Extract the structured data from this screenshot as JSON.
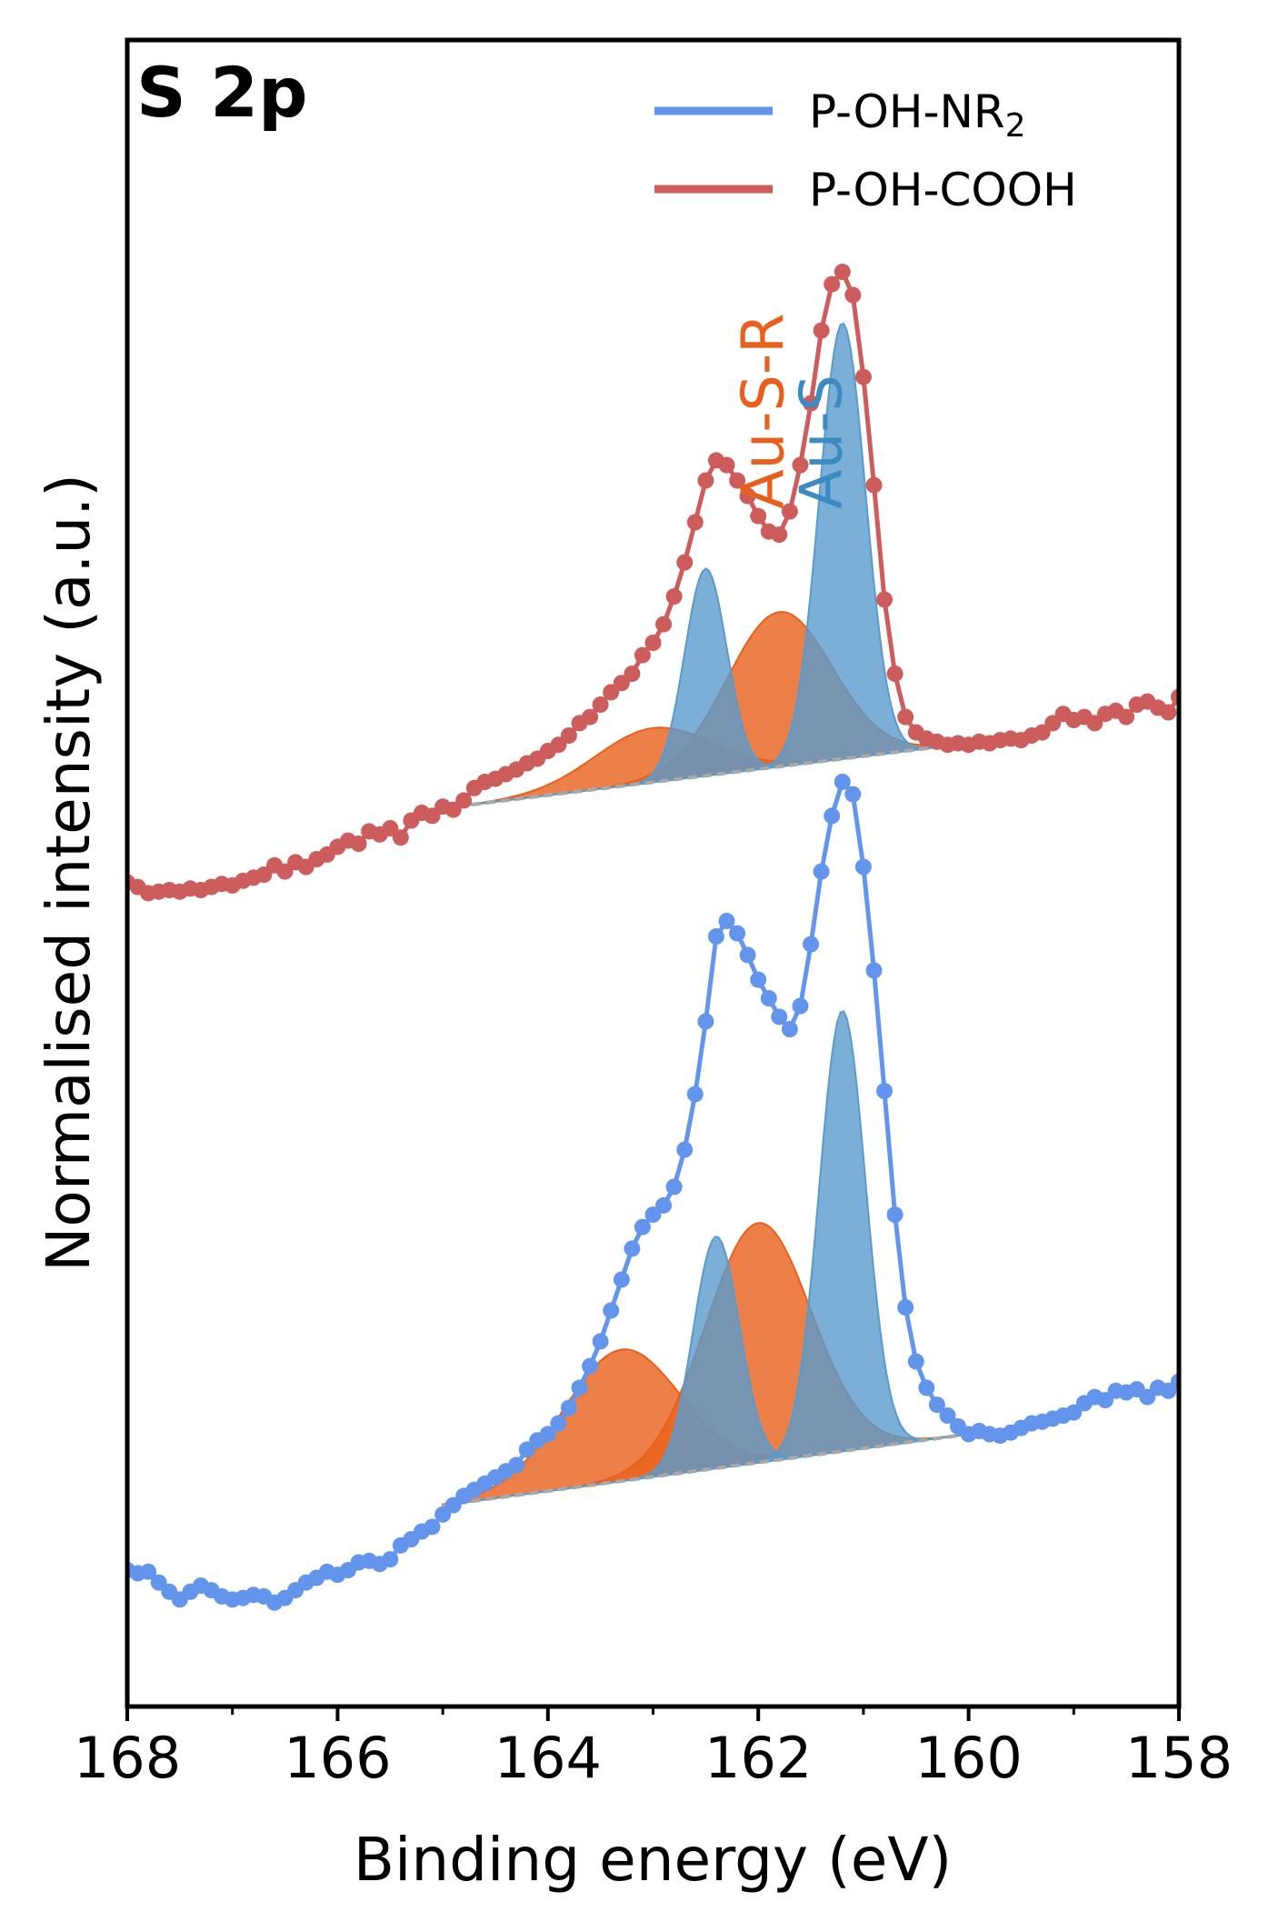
{
  "chart_data": {
    "type": "line",
    "panel_label": "S 2p",
    "xlabel": "Binding energy (eV)",
    "ylabel": "Normalised intensity (a.u.)",
    "xlim": [
      168,
      158
    ],
    "x_axis_reversed": true,
    "x_ticks": [
      168,
      166,
      164,
      162,
      160,
      158
    ],
    "y_ticks_shown": false,
    "grid": false,
    "legend_position": "top-right",
    "peak_labels": [
      {
        "text": "Au-S-R",
        "x": 162.1,
        "color": "#e8601c"
      },
      {
        "text": "Au-S",
        "x": 161.5,
        "color": "#3b8bc2"
      }
    ],
    "series": [
      {
        "name": "P-OH-NR",
        "name_subscript": "2",
        "color": "#6495ed",
        "background_line": [
          [
            165.0,
            0.92
          ],
          [
            160.0,
            1.38
          ]
        ],
        "components": [
          {
            "label": "Au-S",
            "color": "#5a9bcd",
            "peaks": [
              {
                "x0": 161.2,
                "height": 2.85,
                "sigma": 0.22
              },
              {
                "x0": 162.4,
                "height": 1.5,
                "sigma": 0.22
              }
            ]
          },
          {
            "label": "Au-S-R",
            "color": "#e8601c",
            "peaks": [
              {
                "x0": 162.0,
                "height": 1.55,
                "sigma": 0.5
              },
              {
                "x0": 163.3,
                "height": 0.85,
                "sigma": 0.55
              }
            ]
          }
        ],
        "points": [
          [
            168.0,
            0.5
          ],
          [
            167.9,
            0.48
          ],
          [
            167.8,
            0.49
          ],
          [
            167.7,
            0.42
          ],
          [
            167.6,
            0.36
          ],
          [
            167.5,
            0.31
          ],
          [
            167.4,
            0.36
          ],
          [
            167.3,
            0.4
          ],
          [
            167.2,
            0.37
          ],
          [
            167.1,
            0.33
          ],
          [
            167.0,
            0.31
          ],
          [
            166.9,
            0.32
          ],
          [
            166.8,
            0.34
          ],
          [
            166.7,
            0.33
          ],
          [
            166.6,
            0.29
          ],
          [
            166.5,
            0.32
          ],
          [
            166.4,
            0.37
          ],
          [
            166.3,
            0.42
          ],
          [
            166.2,
            0.45
          ],
          [
            166.1,
            0.49
          ],
          [
            166.0,
            0.47
          ],
          [
            165.9,
            0.5
          ],
          [
            165.8,
            0.55
          ],
          [
            165.7,
            0.56
          ],
          [
            165.6,
            0.54
          ],
          [
            165.5,
            0.57
          ],
          [
            165.4,
            0.66
          ],
          [
            165.3,
            0.7
          ],
          [
            165.2,
            0.75
          ],
          [
            165.1,
            0.78
          ],
          [
            165.0,
            0.86
          ],
          [
            164.9,
            0.92
          ],
          [
            164.8,
            0.98
          ],
          [
            164.7,
            1.02
          ],
          [
            164.6,
            1.06
          ],
          [
            164.5,
            1.1
          ],
          [
            164.4,
            1.14
          ],
          [
            164.3,
            1.18
          ],
          [
            164.2,
            1.28
          ],
          [
            164.1,
            1.34
          ],
          [
            164.0,
            1.38
          ],
          [
            163.9,
            1.45
          ],
          [
            163.8,
            1.55
          ],
          [
            163.7,
            1.68
          ],
          [
            163.6,
            1.82
          ],
          [
            163.5,
            1.98
          ],
          [
            163.4,
            2.18
          ],
          [
            163.3,
            2.38
          ],
          [
            163.2,
            2.58
          ],
          [
            163.1,
            2.72
          ],
          [
            163.0,
            2.8
          ],
          [
            162.9,
            2.86
          ],
          [
            162.8,
            2.98
          ],
          [
            162.7,
            3.22
          ],
          [
            162.6,
            3.58
          ],
          [
            162.5,
            4.05
          ],
          [
            162.4,
            4.6
          ],
          [
            162.3,
            4.7
          ],
          [
            162.2,
            4.62
          ],
          [
            162.1,
            4.48
          ],
          [
            162.0,
            4.32
          ],
          [
            161.9,
            4.2
          ],
          [
            161.8,
            4.08
          ],
          [
            161.7,
            4.0
          ],
          [
            161.6,
            4.15
          ],
          [
            161.5,
            4.55
          ],
          [
            161.4,
            5.02
          ],
          [
            161.3,
            5.38
          ],
          [
            161.2,
            5.6
          ],
          [
            161.1,
            5.52
          ],
          [
            161.0,
            5.05
          ],
          [
            160.9,
            4.38
          ],
          [
            160.8,
            3.6
          ],
          [
            160.7,
            2.8
          ],
          [
            160.6,
            2.2
          ],
          [
            160.5,
            1.85
          ],
          [
            160.4,
            1.68
          ],
          [
            160.3,
            1.57
          ],
          [
            160.2,
            1.5
          ],
          [
            160.1,
            1.43
          ],
          [
            160.0,
            1.38
          ],
          [
            159.9,
            1.4
          ],
          [
            159.8,
            1.38
          ],
          [
            159.7,
            1.37
          ],
          [
            159.6,
            1.39
          ],
          [
            159.5,
            1.42
          ],
          [
            159.4,
            1.45
          ],
          [
            159.3,
            1.46
          ],
          [
            159.2,
            1.48
          ],
          [
            159.1,
            1.5
          ],
          [
            159.0,
            1.52
          ],
          [
            158.9,
            1.58
          ],
          [
            158.8,
            1.62
          ],
          [
            158.7,
            1.6
          ],
          [
            158.6,
            1.66
          ],
          [
            158.5,
            1.65
          ],
          [
            158.4,
            1.67
          ],
          [
            158.3,
            1.62
          ],
          [
            158.2,
            1.68
          ],
          [
            158.1,
            1.66
          ],
          [
            158.0,
            1.72
          ]
        ]
      },
      {
        "name": "P-OH-COOH",
        "color": "#cd5c5c",
        "background_line": [
          [
            165.0,
            5.43
          ],
          [
            160.0,
            5.85
          ]
        ],
        "components": [
          {
            "label": "Au-S",
            "color": "#5a9bcd",
            "peaks": [
              {
                "x0": 161.2,
                "height": 2.82,
                "sigma": 0.22
              },
              {
                "x0": 162.5,
                "height": 1.34,
                "sigma": 0.2
              }
            ]
          },
          {
            "label": "Au-S-R",
            "color": "#e8601c",
            "peaks": [
              {
                "x0": 161.8,
                "height": 1.0,
                "sigma": 0.5
              },
              {
                "x0": 163.0,
                "height": 0.35,
                "sigma": 0.55
              }
            ]
          }
        ],
        "points": [
          [
            168.0,
            4.95
          ],
          [
            167.9,
            4.92
          ],
          [
            167.8,
            4.88
          ],
          [
            167.7,
            4.89
          ],
          [
            167.6,
            4.9
          ],
          [
            167.5,
            4.89
          ],
          [
            167.4,
            4.91
          ],
          [
            167.3,
            4.9
          ],
          [
            167.2,
            4.92
          ],
          [
            167.1,
            4.94
          ],
          [
            167.0,
            4.93
          ],
          [
            166.9,
            4.96
          ],
          [
            166.8,
            4.98
          ],
          [
            166.7,
            5.0
          ],
          [
            166.6,
            5.06
          ],
          [
            166.5,
            5.02
          ],
          [
            166.4,
            5.08
          ],
          [
            166.3,
            5.05
          ],
          [
            166.2,
            5.1
          ],
          [
            166.1,
            5.13
          ],
          [
            166.0,
            5.18
          ],
          [
            165.9,
            5.22
          ],
          [
            165.8,
            5.2
          ],
          [
            165.7,
            5.28
          ],
          [
            165.6,
            5.26
          ],
          [
            165.5,
            5.3
          ],
          [
            165.4,
            5.24
          ],
          [
            165.3,
            5.35
          ],
          [
            165.2,
            5.4
          ],
          [
            165.1,
            5.38
          ],
          [
            165.0,
            5.44
          ],
          [
            164.9,
            5.42
          ],
          [
            164.8,
            5.48
          ],
          [
            164.7,
            5.56
          ],
          [
            164.6,
            5.6
          ],
          [
            164.5,
            5.62
          ],
          [
            164.4,
            5.65
          ],
          [
            164.3,
            5.68
          ],
          [
            164.2,
            5.72
          ],
          [
            164.1,
            5.75
          ],
          [
            164.0,
            5.8
          ],
          [
            163.9,
            5.84
          ],
          [
            163.8,
            5.9
          ],
          [
            163.7,
            5.98
          ],
          [
            163.6,
            6.02
          ],
          [
            163.5,
            6.1
          ],
          [
            163.4,
            6.18
          ],
          [
            163.3,
            6.24
          ],
          [
            163.2,
            6.3
          ],
          [
            163.1,
            6.42
          ],
          [
            163.0,
            6.5
          ],
          [
            162.9,
            6.62
          ],
          [
            162.8,
            6.8
          ],
          [
            162.7,
            7.02
          ],
          [
            162.6,
            7.28
          ],
          [
            162.5,
            7.55
          ],
          [
            162.4,
            7.68
          ],
          [
            162.3,
            7.65
          ],
          [
            162.2,
            7.55
          ],
          [
            162.1,
            7.45
          ],
          [
            162.0,
            7.32
          ],
          [
            161.9,
            7.22
          ],
          [
            161.8,
            7.2
          ],
          [
            161.7,
            7.35
          ],
          [
            161.6,
            7.65
          ],
          [
            161.5,
            8.05
          ],
          [
            161.4,
            8.52
          ],
          [
            161.3,
            8.82
          ],
          [
            161.2,
            8.9
          ],
          [
            161.1,
            8.75
          ],
          [
            161.0,
            8.22
          ],
          [
            160.9,
            7.52
          ],
          [
            160.8,
            6.78
          ],
          [
            160.7,
            6.3
          ],
          [
            160.6,
            6.02
          ],
          [
            160.5,
            5.92
          ],
          [
            160.4,
            5.88
          ],
          [
            160.3,
            5.86
          ],
          [
            160.2,
            5.84
          ],
          [
            160.1,
            5.85
          ],
          [
            160.0,
            5.84
          ],
          [
            159.9,
            5.86
          ],
          [
            159.8,
            5.85
          ],
          [
            159.7,
            5.87
          ],
          [
            159.6,
            5.88
          ],
          [
            159.5,
            5.87
          ],
          [
            159.4,
            5.9
          ],
          [
            159.3,
            5.92
          ],
          [
            159.2,
            5.98
          ],
          [
            159.1,
            6.04
          ],
          [
            159.0,
            6.0
          ],
          [
            158.9,
            6.02
          ],
          [
            158.8,
            5.98
          ],
          [
            158.7,
            6.04
          ],
          [
            158.6,
            6.06
          ],
          [
            158.5,
            6.02
          ],
          [
            158.4,
            6.1
          ],
          [
            158.3,
            6.12
          ],
          [
            158.2,
            6.08
          ],
          [
            158.1,
            6.05
          ],
          [
            158.0,
            6.15
          ]
        ]
      }
    ]
  }
}
